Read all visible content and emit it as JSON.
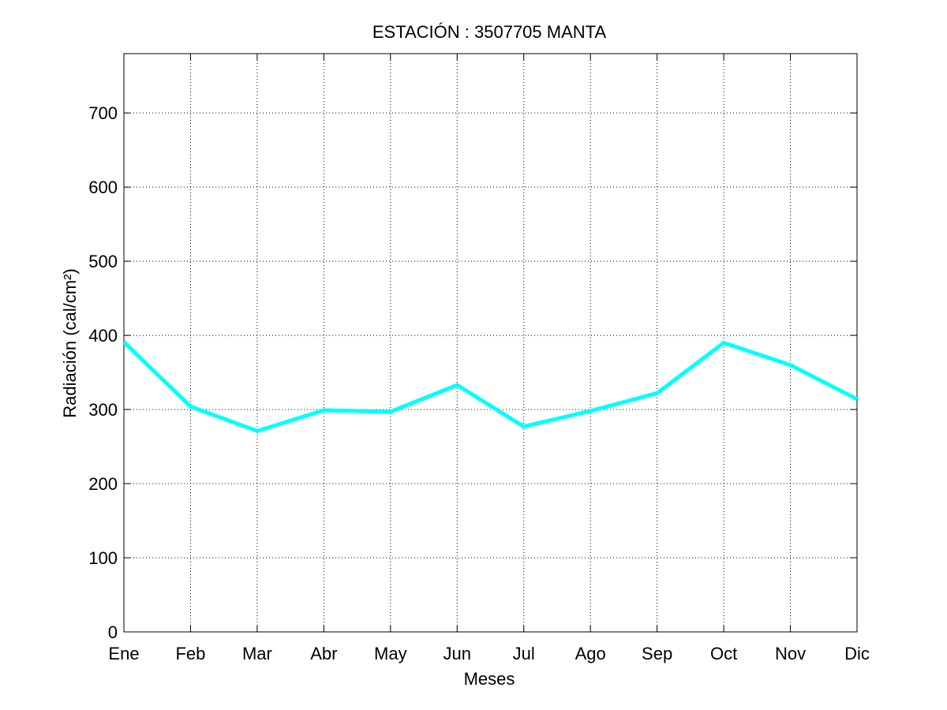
{
  "chart_data": {
    "type": "line",
    "title": "ESTACIÓN :  3507705  MANTA",
    "xlabel": "Meses",
    "ylabel": "Radiación (cal/cm²)",
    "categories": [
      "Ene",
      "Feb",
      "Mar",
      "Abr",
      "May",
      "Jun",
      "Jul",
      "Ago",
      "Sep",
      "Oct",
      "Nov",
      "Dic"
    ],
    "series": [
      {
        "values": [
          391,
          304,
          271,
          299,
          297,
          333,
          277,
          298,
          322,
          390,
          360,
          314
        ],
        "color": "#00ffff"
      }
    ],
    "ylim": [
      0,
      780
    ],
    "yticks": [
      0,
      100,
      200,
      300,
      400,
      500,
      600,
      700
    ],
    "grid": true,
    "legend": "none"
  }
}
